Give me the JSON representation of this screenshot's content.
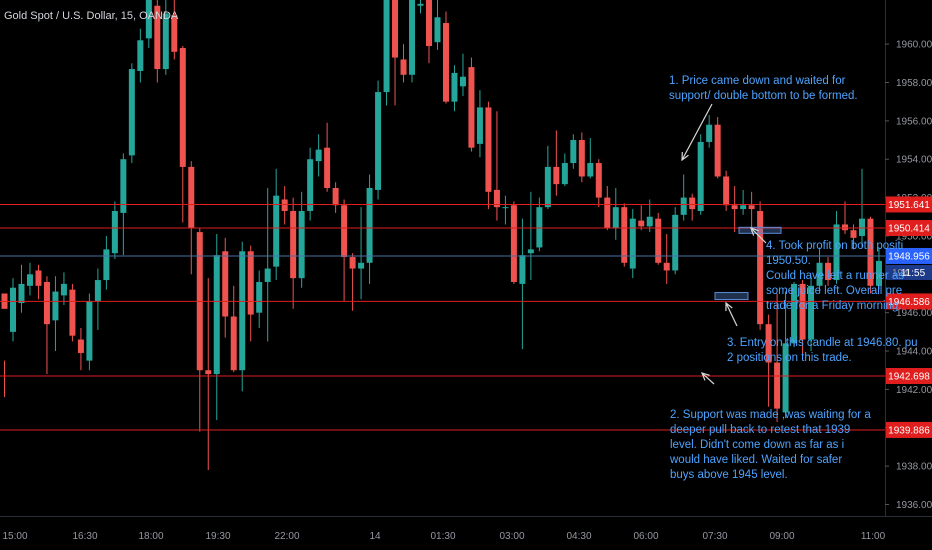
{
  "header": {
    "symbol_title": "Gold Spot / U.S. Dollar, 15, OANDA"
  },
  "colors": {
    "background": "#000000",
    "up": "#26a69a",
    "down": "#ef5350",
    "level": "#e01e1e",
    "current": "#4a6fa5",
    "note": "#4da3ff",
    "axis_text": "#9598a1"
  },
  "annotations": {
    "note1": "1. Price came down and waited for\nsupport/ double bottom to be formed.",
    "note2": "2. Support was made ,was waiting for a\ndeeper pull back to retest that 1939\nlevel. Didn't come down as far as i\nwould have liked. Waited for safer\nbuys above 1945 level.",
    "note3": "3. Entry on this candle at 1946.80. pu\n2 positions on this trade.",
    "note4": "4. Took profit on both positi\n1950.50.\nCould have left a runner as\nsome juice left. Overall pre\ntrade for a Friday morning."
  },
  "chart_data": {
    "type": "candlestick",
    "title": "Gold Spot / U.S. Dollar, 15, OANDA",
    "ylim": [
      1935.4,
      1962.3
    ],
    "y_ticks": [
      "1960.000",
      "1958.000",
      "1956.000",
      "1954.000",
      "1952.000",
      "1950.000",
      "1948.000",
      "1946.000",
      "1944.000",
      "1942.000",
      "1940.000",
      "1938.000",
      "1936.000"
    ],
    "x_ticks": [
      "15:00",
      "16:30",
      "18:00",
      "19:30",
      "22:00",
      "14",
      "01:30",
      "03:00",
      "04:30",
      "06:00",
      "07:30",
      "09:00",
      "11:00"
    ],
    "levels": [
      1951.641,
      1950.414,
      1946.586,
      1942.698,
      1939.886
    ],
    "level_labels": [
      "1951.641",
      "1950.414",
      "1946.586",
      "1942.698",
      "1939.886"
    ],
    "current_price": 1948.956,
    "current_label": "1948.956",
    "countdown": "11:55",
    "partial_tick": "194",
    "candles": [
      [
        1947.0,
        1946.2,
        1943.5,
        1941.6
      ],
      [
        1945.0,
        1947.3,
        1947.8,
        1944.5
      ],
      [
        1946.5,
        1947.5,
        1948.5,
        1946.0
      ],
      [
        1947.4,
        1948.0,
        1948.6,
        1946.9
      ],
      [
        1948.2,
        1947.4,
        1948.5,
        1946.7
      ],
      [
        1947.6,
        1945.4,
        1947.9,
        1942.8
      ],
      [
        1945.6,
        1947.1,
        1947.9,
        1944.0
      ],
      [
        1946.9,
        1947.5,
        1948.1,
        1946.4
      ],
      [
        1947.2,
        1944.8,
        1947.5,
        1944.5
      ],
      [
        1944.6,
        1943.9,
        1945.2,
        1943.0
      ],
      [
        1943.5,
        1946.6,
        1947.0,
        1943.0
      ],
      [
        1946.6,
        1947.7,
        1948.3,
        1945.1
      ],
      [
        1947.7,
        1949.3,
        1950.0,
        1947.2
      ],
      [
        1949.1,
        1951.3,
        1951.8,
        1948.8
      ],
      [
        1951.2,
        1954.0,
        1954.3,
        1949.0
      ],
      [
        1954.2,
        1958.7,
        1959.0,
        1953.8
      ],
      [
        1958.6,
        1960.2,
        1960.8,
        1958.0
      ],
      [
        1960.3,
        1962.3,
        1962.5,
        1959.8
      ],
      [
        1962.0,
        1958.7,
        1962.3,
        1958.0
      ],
      [
        1958.7,
        1961.6,
        1962.6,
        1958.4
      ],
      [
        1961.5,
        1959.6,
        1962.8,
        1959.2
      ],
      [
        1959.8,
        1953.6,
        1959.9,
        1950.7
      ],
      [
        1953.6,
        1950.4,
        1953.9,
        1948.0
      ],
      [
        1950.2,
        1943.0,
        1950.4,
        1939.8
      ],
      [
        1943.0,
        1942.8,
        1947.8,
        1937.8
      ],
      [
        1942.8,
        1949.0,
        1950.1,
        1940.4
      ],
      [
        1949.2,
        1945.8,
        1949.9,
        1944.7
      ],
      [
        1945.8,
        1943.0,
        1947.4,
        1942.9
      ],
      [
        1943.0,
        1949.2,
        1949.7,
        1941.9
      ],
      [
        1949.2,
        1945.9,
        1949.5,
        1944.5
      ],
      [
        1946.0,
        1947.6,
        1948.2,
        1945.2
      ],
      [
        1947.6,
        1948.3,
        1952.5,
        1944.5
      ],
      [
        1948.4,
        1952.1,
        1953.5,
        1947.7
      ],
      [
        1951.9,
        1951.3,
        1952.6,
        1950.6
      ],
      [
        1951.3,
        1947.8,
        1952.0,
        1946.2
      ],
      [
        1947.8,
        1951.3,
        1952.3,
        1947.3
      ],
      [
        1951.3,
        1954.0,
        1954.6,
        1950.8
      ],
      [
        1953.9,
        1954.5,
        1955.3,
        1953.1
      ],
      [
        1954.6,
        1952.5,
        1955.9,
        1952.3
      ],
      [
        1952.5,
        1951.6,
        1952.8,
        1951.2
      ],
      [
        1951.6,
        1948.9,
        1951.9,
        1946.6
      ],
      [
        1948.9,
        1948.3,
        1949.1,
        1946.1
      ],
      [
        1948.3,
        1948.6,
        1951.5,
        1946.7
      ],
      [
        1948.6,
        1952.5,
        1953.2,
        1947.5
      ],
      [
        1952.4,
        1957.5,
        1958.1,
        1951.9
      ],
      [
        1957.5,
        1962.7,
        1962.9,
        1956.8
      ],
      [
        1962.7,
        1959.3,
        1962.9,
        1956.8
      ],
      [
        1959.2,
        1958.4,
        1960.0,
        1958.0
      ],
      [
        1958.4,
        1962.3,
        1962.9,
        1958.0
      ],
      [
        1962.0,
        1962.1,
        1962.8,
        1961.6
      ],
      [
        1962.3,
        1959.9,
        1962.5,
        1959.0
      ],
      [
        1960.1,
        1961.4,
        1962.8,
        1959.7
      ],
      [
        1961.1,
        1957.0,
        1961.7,
        1956.9
      ],
      [
        1957.0,
        1958.5,
        1958.9,
        1956.5
      ],
      [
        1957.8,
        1958.3,
        1959.5,
        1957.3
      ],
      [
        1958.8,
        1954.6,
        1959.3,
        1954.4
      ],
      [
        1954.8,
        1956.7,
        1957.6,
        1954.1
      ],
      [
        1956.7,
        1952.3,
        1957.0,
        1951.4
      ],
      [
        1952.4,
        1951.5,
        1956.5,
        1950.8
      ],
      [
        1951.5,
        1951.5,
        1952.1,
        1950.6
      ],
      [
        1951.6,
        1947.6,
        1951.8,
        1947.5
      ],
      [
        1947.5,
        1949.0,
        1950.9,
        1944.1
      ],
      [
        1949.1,
        1949.3,
        1952.3,
        1947.7
      ],
      [
        1949.4,
        1951.5,
        1952.0,
        1949.2
      ],
      [
        1951.5,
        1953.6,
        1954.7,
        1951.4
      ],
      [
        1953.6,
        1952.7,
        1955.5,
        1952.1
      ],
      [
        1952.7,
        1953.8,
        1954.3,
        1952.6
      ],
      [
        1953.8,
        1955.0,
        1955.3,
        1953.5
      ],
      [
        1955.0,
        1953.1,
        1955.4,
        1952.8
      ],
      [
        1953.1,
        1953.8,
        1955.1,
        1953.0
      ],
      [
        1953.8,
        1952.0,
        1954.0,
        1951.5
      ],
      [
        1952.0,
        1950.4,
        1952.6,
        1950.3
      ],
      [
        1950.4,
        1951.5,
        1952.5,
        1949.8
      ],
      [
        1951.5,
        1948.6,
        1951.7,
        1948.4
      ],
      [
        1948.3,
        1950.9,
        1951.4,
        1947.8
      ],
      [
        1950.8,
        1950.5,
        1951.6,
        1950.3
      ],
      [
        1950.5,
        1951.0,
        1951.9,
        1950.2
      ],
      [
        1950.9,
        1948.6,
        1951.2,
        1948.5
      ],
      [
        1948.6,
        1948.2,
        1950.1,
        1947.5
      ],
      [
        1948.2,
        1951.1,
        1951.5,
        1948.0
      ],
      [
        1951.1,
        1952.0,
        1953.2,
        1950.8
      ],
      [
        1952.0,
        1951.4,
        1952.2,
        1950.8
      ],
      [
        1951.3,
        1954.9,
        1955.3,
        1951.1
      ],
      [
        1954.9,
        1955.8,
        1956.3,
        1954.6
      ],
      [
        1955.8,
        1953.1,
        1956.2,
        1953.0
      ],
      [
        1953.1,
        1951.6,
        1953.4,
        1951.3
      ],
      [
        1951.6,
        1951.4,
        1952.6,
        1950.2
      ],
      [
        1951.4,
        1951.6,
        1952.4,
        1951.1
      ],
      [
        1951.6,
        1951.4,
        1952.3,
        1950.2
      ],
      [
        1951.3,
        1945.4,
        1951.8,
        1945.1
      ],
      [
        1945.4,
        1943.4,
        1945.9,
        1941.1
      ],
      [
        1943.4,
        1941.0,
        1947.0,
        1940.3
      ],
      [
        1940.8,
        1944.4,
        1947.1,
        1940.5
      ],
      [
        1944.4,
        1947.5,
        1947.6,
        1944.2
      ],
      [
        1947.5,
        1944.6,
        1947.7,
        1943.7
      ],
      [
        1944.6,
        1947.4,
        1947.9,
        1944.0
      ],
      [
        1947.4,
        1948.6,
        1949.4,
        1947.0
      ],
      [
        1948.6,
        1947.7,
        1948.9,
        1947.4
      ],
      [
        1947.7,
        1950.6,
        1951.3,
        1947.5
      ],
      [
        1950.6,
        1950.3,
        1951.8,
        1950.1
      ],
      [
        1950.3,
        1949.9,
        1950.6,
        1949.3
      ],
      [
        1950.0,
        1950.9,
        1953.5,
        1949.4
      ],
      [
        1950.9,
        1947.4,
        1951.0,
        1947.0
      ],
      [
        1947.4,
        1948.7,
        1949.4,
        1947.2
      ]
    ]
  }
}
